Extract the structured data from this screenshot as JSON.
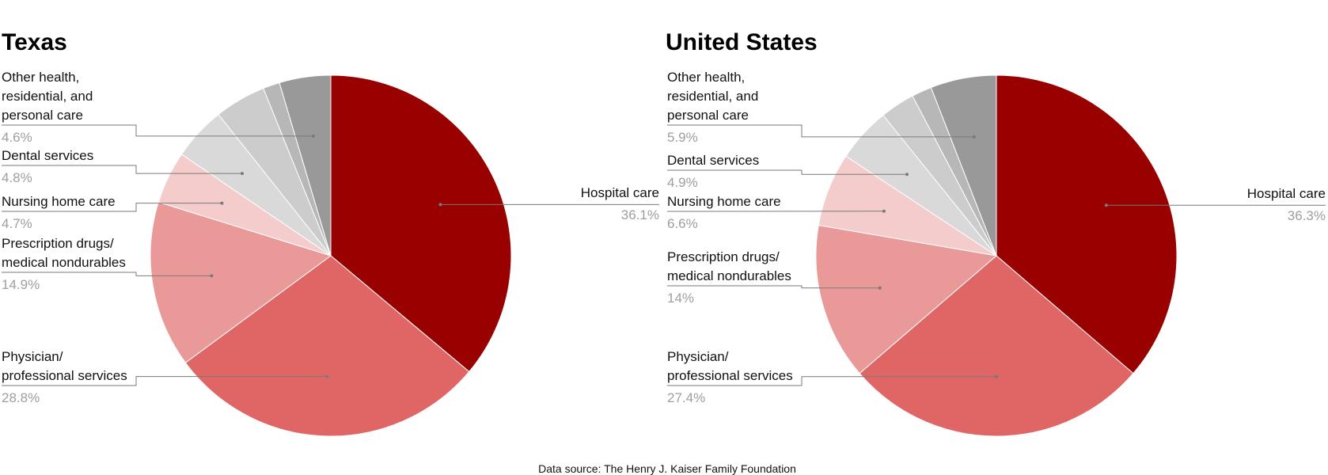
{
  "source_note": "Data source: The Henry J. Kaiser Family Foundation",
  "chart_data": [
    {
      "type": "pie",
      "title": "Texas",
      "slices": [
        {
          "label": "Hospital care",
          "value": 36.1,
          "display": "36.1%",
          "color": "#990000"
        },
        {
          "label": "Physician/ professional services",
          "value": 28.8,
          "display": "28.8%",
          "color": "#e06666"
        },
        {
          "label": "Prescription drugs/ medical nondurables",
          "value": 14.9,
          "display": "14.9%",
          "color": "#ea9999"
        },
        {
          "label": "Nursing home care",
          "value": 4.7,
          "display": "4.7%",
          "color": "#f4cccc"
        },
        {
          "label": "Dental services",
          "value": 4.8,
          "display": "4.8%",
          "color": "#d9d9d9"
        },
        {
          "label": "",
          "value": 4.6,
          "display": "",
          "color": "#cccccc"
        },
        {
          "label": "",
          "value": 1.5,
          "display": "",
          "color": "#b7b7b7"
        },
        {
          "label": "Other health, residential, and personal care",
          "value": 4.6,
          "display": "4.6%",
          "color": "#999999"
        }
      ]
    },
    {
      "type": "pie",
      "title": "United States",
      "slices": [
        {
          "label": "Hospital care",
          "value": 36.3,
          "display": "36.3%",
          "color": "#990000"
        },
        {
          "label": "Physician/ professional services",
          "value": 27.4,
          "display": "27.4%",
          "color": "#e06666"
        },
        {
          "label": "Prescription drugs/ medical nondurables",
          "value": 14,
          "display": "14%",
          "color": "#ea9999"
        },
        {
          "label": "Nursing home care",
          "value": 6.6,
          "display": "6.6%",
          "color": "#f4cccc"
        },
        {
          "label": "Dental services",
          "value": 4.9,
          "display": "4.9%",
          "color": "#d9d9d9"
        },
        {
          "label": "",
          "value": 3.1,
          "display": "",
          "color": "#cccccc"
        },
        {
          "label": "",
          "value": 1.8,
          "display": "",
          "color": "#b7b7b7"
        },
        {
          "label": "Other health, residential, and personal care",
          "value": 5.9,
          "display": "5.9%",
          "color": "#999999"
        }
      ]
    }
  ]
}
